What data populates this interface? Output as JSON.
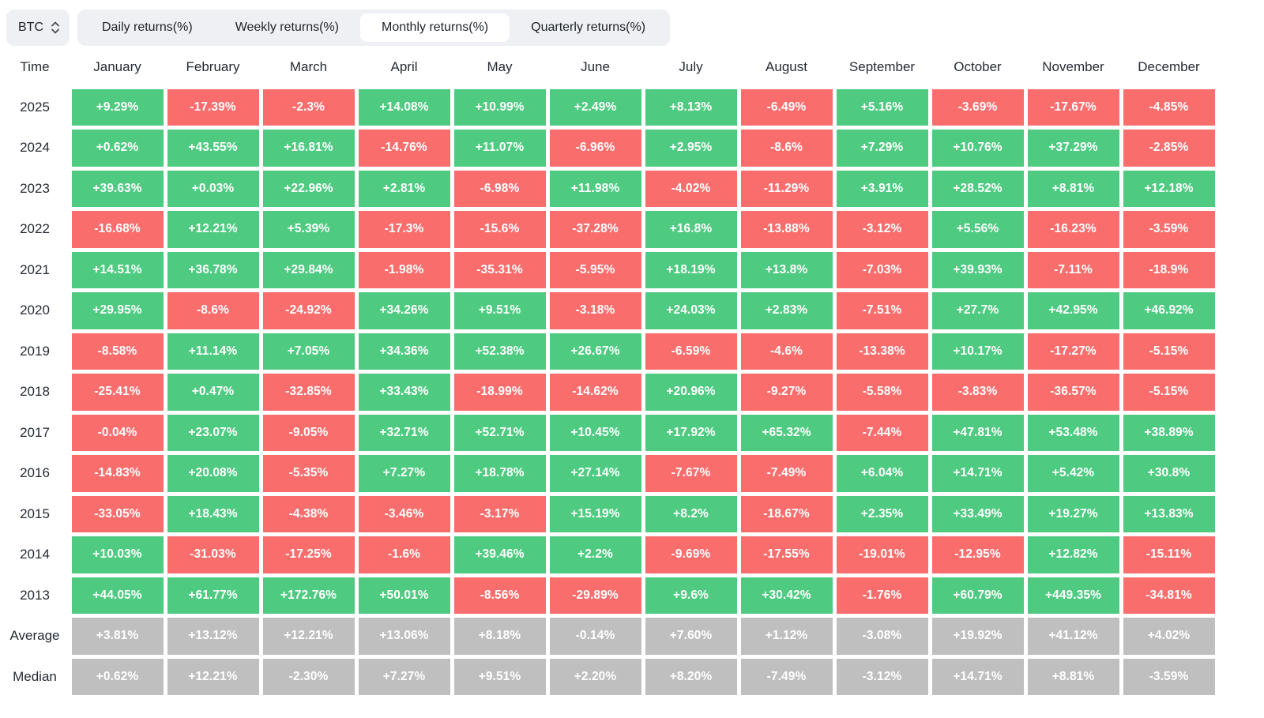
{
  "asset_selector": {
    "value": "BTC"
  },
  "tabs": [
    {
      "label": "Daily returns(%)",
      "selected": false
    },
    {
      "label": "Weekly returns(%)",
      "selected": false
    },
    {
      "label": "Monthly returns(%)",
      "selected": true
    },
    {
      "label": "Quarterly returns(%)",
      "selected": false
    }
  ],
  "colors": {
    "positive": "#4ecb81",
    "negative": "#f96d6d",
    "neutral": "#bfbfbf"
  },
  "table": {
    "time_header": "Time",
    "months": [
      "January",
      "February",
      "March",
      "April",
      "May",
      "June",
      "July",
      "August",
      "September",
      "October",
      "November",
      "December"
    ],
    "rows": [
      {
        "label": "2025",
        "type": "year",
        "values": [
          "+9.29%",
          "-17.39%",
          "-2.3%",
          "+14.08%",
          "+10.99%",
          "+2.49%",
          "+8.13%",
          "-6.49%",
          "+5.16%",
          "-3.69%",
          "-17.67%",
          "-4.85%"
        ]
      },
      {
        "label": "2024",
        "type": "year",
        "values": [
          "+0.62%",
          "+43.55%",
          "+16.81%",
          "-14.76%",
          "+11.07%",
          "-6.96%",
          "+2.95%",
          "-8.6%",
          "+7.29%",
          "+10.76%",
          "+37.29%",
          "-2.85%"
        ]
      },
      {
        "label": "2023",
        "type": "year",
        "values": [
          "+39.63%",
          "+0.03%",
          "+22.96%",
          "+2.81%",
          "-6.98%",
          "+11.98%",
          "-4.02%",
          "-11.29%",
          "+3.91%",
          "+28.52%",
          "+8.81%",
          "+12.18%"
        ]
      },
      {
        "label": "2022",
        "type": "year",
        "values": [
          "-16.68%",
          "+12.21%",
          "+5.39%",
          "-17.3%",
          "-15.6%",
          "-37.28%",
          "+16.8%",
          "-13.88%",
          "-3.12%",
          "+5.56%",
          "-16.23%",
          "-3.59%"
        ]
      },
      {
        "label": "2021",
        "type": "year",
        "values": [
          "+14.51%",
          "+36.78%",
          "+29.84%",
          "-1.98%",
          "-35.31%",
          "-5.95%",
          "+18.19%",
          "+13.8%",
          "-7.03%",
          "+39.93%",
          "-7.11%",
          "-18.9%"
        ]
      },
      {
        "label": "2020",
        "type": "year",
        "values": [
          "+29.95%",
          "-8.6%",
          "-24.92%",
          "+34.26%",
          "+9.51%",
          "-3.18%",
          "+24.03%",
          "+2.83%",
          "-7.51%",
          "+27.7%",
          "+42.95%",
          "+46.92%"
        ]
      },
      {
        "label": "2019",
        "type": "year",
        "values": [
          "-8.58%",
          "+11.14%",
          "+7.05%",
          "+34.36%",
          "+52.38%",
          "+26.67%",
          "-6.59%",
          "-4.6%",
          "-13.38%",
          "+10.17%",
          "-17.27%",
          "-5.15%"
        ]
      },
      {
        "label": "2018",
        "type": "year",
        "values": [
          "-25.41%",
          "+0.47%",
          "-32.85%",
          "+33.43%",
          "-18.99%",
          "-14.62%",
          "+20.96%",
          "-9.27%",
          "-5.58%",
          "-3.83%",
          "-36.57%",
          "-5.15%"
        ]
      },
      {
        "label": "2017",
        "type": "year",
        "values": [
          "-0.04%",
          "+23.07%",
          "-9.05%",
          "+32.71%",
          "+52.71%",
          "+10.45%",
          "+17.92%",
          "+65.32%",
          "-7.44%",
          "+47.81%",
          "+53.48%",
          "+38.89%"
        ]
      },
      {
        "label": "2016",
        "type": "year",
        "values": [
          "-14.83%",
          "+20.08%",
          "-5.35%",
          "+7.27%",
          "+18.78%",
          "+27.14%",
          "-7.67%",
          "-7.49%",
          "+6.04%",
          "+14.71%",
          "+5.42%",
          "+30.8%"
        ]
      },
      {
        "label": "2015",
        "type": "year",
        "values": [
          "-33.05%",
          "+18.43%",
          "-4.38%",
          "-3.46%",
          "-3.17%",
          "+15.19%",
          "+8.2%",
          "-18.67%",
          "+2.35%",
          "+33.49%",
          "+19.27%",
          "+13.83%"
        ]
      },
      {
        "label": "2014",
        "type": "year",
        "values": [
          "+10.03%",
          "-31.03%",
          "-17.25%",
          "-1.6%",
          "+39.46%",
          "+2.2%",
          "-9.69%",
          "-17.55%",
          "-19.01%",
          "-12.95%",
          "+12.82%",
          "-15.11%"
        ]
      },
      {
        "label": "2013",
        "type": "year",
        "values": [
          "+44.05%",
          "+61.77%",
          "+172.76%",
          "+50.01%",
          "-8.56%",
          "-29.89%",
          "+9.6%",
          "+30.42%",
          "-1.76%",
          "+60.79%",
          "+449.35%",
          "-34.81%"
        ]
      },
      {
        "label": "Average",
        "type": "summary",
        "values": [
          "+3.81%",
          "+13.12%",
          "+12.21%",
          "+13.06%",
          "+8.18%",
          "-0.14%",
          "+7.60%",
          "+1.12%",
          "-3.08%",
          "+19.92%",
          "+41.12%",
          "+4.02%"
        ]
      },
      {
        "label": "Median",
        "type": "summary",
        "values": [
          "+0.62%",
          "+12.21%",
          "-2.30%",
          "+7.27%",
          "+9.51%",
          "+2.20%",
          "+8.20%",
          "-7.49%",
          "-3.12%",
          "+14.71%",
          "+8.81%",
          "-3.59%"
        ]
      }
    ]
  }
}
